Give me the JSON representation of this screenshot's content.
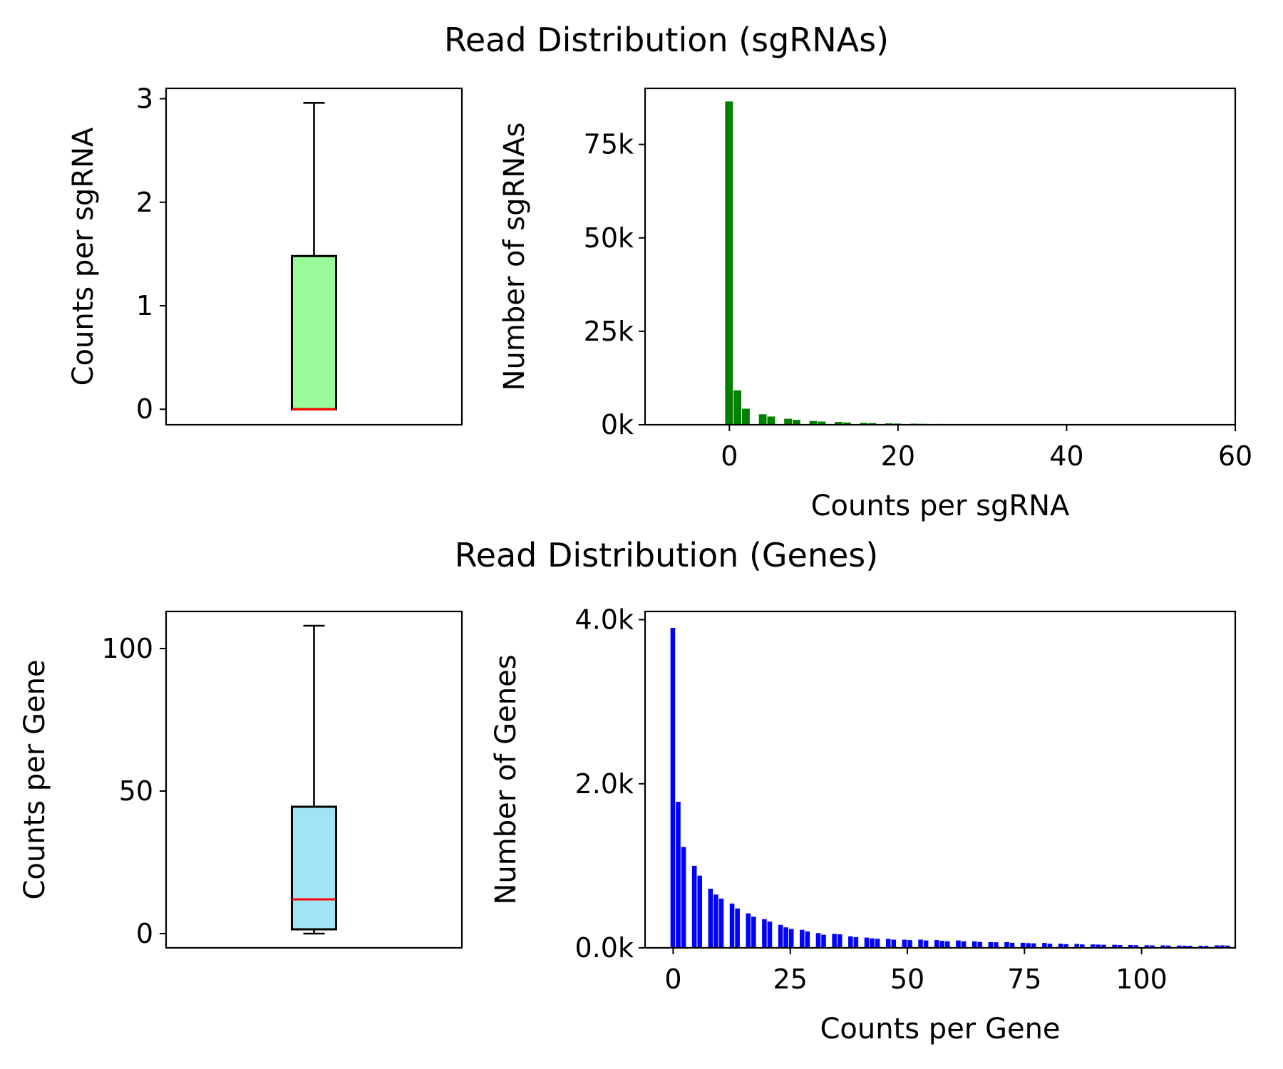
{
  "titles": {
    "top": "Read Distribution (sgRNAs)",
    "bottom": "Read Distribution (Genes)"
  },
  "colors": {
    "sgrna_box": "#98fb98",
    "gene_box": "#a0e4f7",
    "sgrna_hist": "#008000",
    "gene_hist": "#0000ff",
    "median": "#ff0000"
  },
  "chart_data": [
    {
      "type": "box",
      "id": "sgrna-box",
      "ylabel": "Counts per sgRNA",
      "ylim": [
        -0.15,
        3.1
      ],
      "yticks": [
        0,
        1,
        2,
        3
      ],
      "whisker_low": 0,
      "q1": 0,
      "median": 0,
      "q3": 1.48,
      "whisker_high": 2.96
    },
    {
      "type": "bar",
      "id": "sgrna-hist",
      "xlabel": "Counts per sgRNA",
      "ylabel": "Number of sgRNAs",
      "xlim": [
        -10,
        60
      ],
      "ylim": [
        0,
        90000
      ],
      "xticks": [
        0,
        20,
        40,
        60
      ],
      "yticks": [
        0,
        25000,
        50000,
        75000
      ],
      "ytick_labels": [
        "0k",
        "25k",
        "50k",
        "75k"
      ],
      "bin_width": 1,
      "bins": [
        {
          "x": 0,
          "y": 86500
        },
        {
          "x": 1,
          "y": 9200
        },
        {
          "x": 2,
          "y": 4300
        },
        {
          "x": 3,
          "y": 0
        },
        {
          "x": 4,
          "y": 2800
        },
        {
          "x": 5,
          "y": 2200
        },
        {
          "x": 6,
          "y": 0
        },
        {
          "x": 7,
          "y": 1600
        },
        {
          "x": 8,
          "y": 1300
        },
        {
          "x": 9,
          "y": 0
        },
        {
          "x": 10,
          "y": 1000
        },
        {
          "x": 11,
          "y": 850
        },
        {
          "x": 12,
          "y": 0
        },
        {
          "x": 13,
          "y": 750
        },
        {
          "x": 14,
          "y": 600
        },
        {
          "x": 15,
          "y": 0
        },
        {
          "x": 16,
          "y": 500
        },
        {
          "x": 17,
          "y": 450
        },
        {
          "x": 18,
          "y": 0
        },
        {
          "x": 19,
          "y": 380
        },
        {
          "x": 20,
          "y": 320
        },
        {
          "x": 21,
          "y": 0
        },
        {
          "x": 22,
          "y": 280
        },
        {
          "x": 23,
          "y": 240
        },
        {
          "x": 24,
          "y": 0
        },
        {
          "x": 25,
          "y": 210
        },
        {
          "x": 26,
          "y": 190
        },
        {
          "x": 27,
          "y": 0
        },
        {
          "x": 28,
          "y": 170
        }
      ]
    },
    {
      "type": "box",
      "id": "gene-box",
      "ylabel": "Counts per Gene",
      "ylim": [
        -5,
        113
      ],
      "yticks": [
        0,
        50,
        100
      ],
      "whisker_low": 0,
      "q1": 1.5,
      "median": 12,
      "q3": 44.5,
      "whisker_high": 108
    },
    {
      "type": "bar",
      "id": "gene-hist",
      "xlabel": "Counts per Gene",
      "ylabel": "Number of Genes",
      "xlim": [
        -6,
        120
      ],
      "ylim": [
        0,
        4100
      ],
      "xticks": [
        0,
        25,
        50,
        75,
        100
      ],
      "yticks": [
        0,
        2000,
        4000
      ],
      "ytick_labels": [
        "0.0k",
        "2.0k",
        "4.0k"
      ],
      "bin_width": 1.15,
      "bins": [
        {
          "x": 0,
          "y": 3900
        },
        {
          "x": 1.15,
          "y": 1780
        },
        {
          "x": 2.3,
          "y": 1230
        },
        {
          "x": 3.45,
          "y": 0
        },
        {
          "x": 4.6,
          "y": 1000
        },
        {
          "x": 5.75,
          "y": 880
        },
        {
          "x": 6.9,
          "y": 0
        },
        {
          "x": 8.05,
          "y": 720
        },
        {
          "x": 9.2,
          "y": 650
        },
        {
          "x": 10.35,
          "y": 600
        },
        {
          "x": 11.5,
          "y": 0
        },
        {
          "x": 12.65,
          "y": 540
        },
        {
          "x": 13.8,
          "y": 480
        },
        {
          "x": 14.95,
          "y": 0
        },
        {
          "x": 16.1,
          "y": 420
        },
        {
          "x": 17.25,
          "y": 380
        },
        {
          "x": 18.4,
          "y": 0
        },
        {
          "x": 19.55,
          "y": 350
        },
        {
          "x": 20.7,
          "y": 320
        },
        {
          "x": 21.85,
          "y": 0
        },
        {
          "x": 23,
          "y": 280
        },
        {
          "x": 24.15,
          "y": 250
        },
        {
          "x": 25.3,
          "y": 230
        },
        {
          "x": 26.45,
          "y": 0
        },
        {
          "x": 27.6,
          "y": 220
        },
        {
          "x": 28.75,
          "y": 200
        },
        {
          "x": 29.9,
          "y": 0
        },
        {
          "x": 31.05,
          "y": 180
        },
        {
          "x": 32.2,
          "y": 160
        },
        {
          "x": 33.35,
          "y": 0
        },
        {
          "x": 34.5,
          "y": 170
        },
        {
          "x": 35.65,
          "y": 165
        },
        {
          "x": 36.8,
          "y": 0
        },
        {
          "x": 37.95,
          "y": 140
        },
        {
          "x": 39.1,
          "y": 130
        },
        {
          "x": 40.25,
          "y": 0
        },
        {
          "x": 41.4,
          "y": 125
        },
        {
          "x": 42.55,
          "y": 115
        },
        {
          "x": 43.7,
          "y": 110
        },
        {
          "x": 44.85,
          "y": 0
        },
        {
          "x": 46,
          "y": 110
        },
        {
          "x": 47.15,
          "y": 100
        },
        {
          "x": 48.3,
          "y": 0
        },
        {
          "x": 49.45,
          "y": 100
        },
        {
          "x": 50.6,
          "y": 95
        },
        {
          "x": 51.75,
          "y": 0
        },
        {
          "x": 52.9,
          "y": 100
        },
        {
          "x": 54.05,
          "y": 90
        },
        {
          "x": 55.2,
          "y": 0
        },
        {
          "x": 56.35,
          "y": 95
        },
        {
          "x": 57.5,
          "y": 85
        },
        {
          "x": 58.65,
          "y": 80
        },
        {
          "x": 59.8,
          "y": 0
        },
        {
          "x": 60.95,
          "y": 90
        },
        {
          "x": 62.1,
          "y": 80
        },
        {
          "x": 63.25,
          "y": 0
        },
        {
          "x": 64.4,
          "y": 80
        },
        {
          "x": 65.55,
          "y": 72
        },
        {
          "x": 66.7,
          "y": 0
        },
        {
          "x": 67.85,
          "y": 70
        },
        {
          "x": 69,
          "y": 68
        },
        {
          "x": 70.15,
          "y": 0
        },
        {
          "x": 71.3,
          "y": 70
        },
        {
          "x": 72.45,
          "y": 62
        },
        {
          "x": 73.6,
          "y": 0
        },
        {
          "x": 74.75,
          "y": 62
        },
        {
          "x": 75.9,
          "y": 58
        },
        {
          "x": 77.05,
          "y": 55
        },
        {
          "x": 78.2,
          "y": 0
        },
        {
          "x": 79.35,
          "y": 60
        },
        {
          "x": 80.5,
          "y": 50
        },
        {
          "x": 81.65,
          "y": 0
        },
        {
          "x": 82.8,
          "y": 50
        },
        {
          "x": 83.95,
          "y": 45
        },
        {
          "x": 85.1,
          "y": 0
        },
        {
          "x": 86.25,
          "y": 48
        },
        {
          "x": 87.4,
          "y": 42
        },
        {
          "x": 88.55,
          "y": 0
        },
        {
          "x": 89.7,
          "y": 42
        },
        {
          "x": 90.85,
          "y": 40
        },
        {
          "x": 92,
          "y": 38
        },
        {
          "x": 93.15,
          "y": 0
        },
        {
          "x": 94.3,
          "y": 38
        },
        {
          "x": 95.45,
          "y": 35
        },
        {
          "x": 96.6,
          "y": 0
        },
        {
          "x": 97.75,
          "y": 35
        },
        {
          "x": 98.9,
          "y": 32
        },
        {
          "x": 100.05,
          "y": 0
        },
        {
          "x": 101.2,
          "y": 32
        },
        {
          "x": 102.35,
          "y": 30
        },
        {
          "x": 103.5,
          "y": 0
        },
        {
          "x": 104.65,
          "y": 30
        },
        {
          "x": 105.8,
          "y": 28
        },
        {
          "x": 106.95,
          "y": 0
        },
        {
          "x": 108.1,
          "y": 28
        },
        {
          "x": 109.25,
          "y": 26
        },
        {
          "x": 110.4,
          "y": 25
        },
        {
          "x": 111.55,
          "y": 0
        },
        {
          "x": 112.7,
          "y": 25
        },
        {
          "x": 113.85,
          "y": 24
        },
        {
          "x": 115,
          "y": 0
        },
        {
          "x": 116.15,
          "y": 30
        },
        {
          "x": 117.3,
          "y": 30
        },
        {
          "x": 118.45,
          "y": 28
        }
      ]
    }
  ]
}
